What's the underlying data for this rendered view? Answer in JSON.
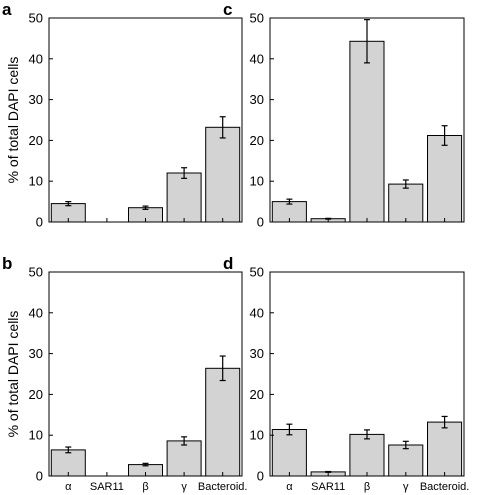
{
  "ylabel": "% of total DAPI cells",
  "colors": {
    "bar": "#d3d3d3",
    "stroke": "#000000"
  },
  "chart_data": [
    {
      "panel": "a",
      "type": "bar",
      "categories": [
        "α",
        "SAR11",
        "β",
        "γ",
        "Bacteroid."
      ],
      "values": [
        4.5,
        0,
        3.5,
        12,
        23.2
      ],
      "errors": [
        0.5,
        0,
        0.4,
        1.3,
        2.6
      ],
      "ylim": [
        0,
        50
      ],
      "yticks": [
        0,
        10,
        20,
        30,
        40,
        50
      ],
      "ylabel": "% of total DAPI cells",
      "show_category_labels": false
    },
    {
      "panel": "c",
      "type": "bar",
      "categories": [
        "α",
        "SAR11",
        "β",
        "γ",
        "Bacteroid."
      ],
      "values": [
        5,
        0.8,
        44.3,
        9.3,
        21.2
      ],
      "errors": [
        0.6,
        0.1,
        5.3,
        1,
        2.4
      ],
      "ylim": [
        0,
        50
      ],
      "yticks": [
        0,
        10,
        20,
        30,
        40,
        50
      ],
      "ylabel": "",
      "show_category_labels": false
    },
    {
      "panel": "b",
      "type": "bar",
      "categories": [
        "α",
        "SAR11",
        "β",
        "γ",
        "Bacteroid."
      ],
      "values": [
        6.4,
        0,
        2.8,
        8.6,
        26.4
      ],
      "errors": [
        0.7,
        0,
        0.3,
        1,
        3
      ],
      "ylim": [
        0,
        50
      ],
      "yticks": [
        0,
        10,
        20,
        30,
        40,
        50
      ],
      "ylabel": "% of total DAPI cells",
      "show_category_labels": true
    },
    {
      "panel": "d",
      "type": "bar",
      "categories": [
        "α",
        "SAR11",
        "β",
        "γ",
        "Bacteroid."
      ],
      "values": [
        11.4,
        1,
        10.2,
        7.6,
        13.2
      ],
      "errors": [
        1.3,
        0.1,
        1.1,
        0.9,
        1.4
      ],
      "ylim": [
        0,
        50
      ],
      "yticks": [
        0,
        10,
        20,
        30,
        40,
        50
      ],
      "ylabel": "",
      "show_category_labels": true
    }
  ]
}
